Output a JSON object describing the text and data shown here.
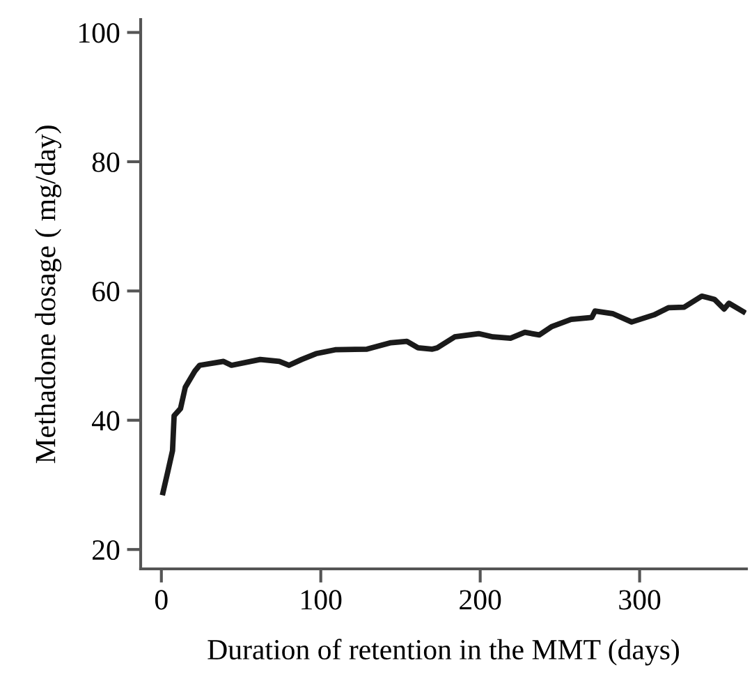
{
  "chart_data": {
    "type": "line",
    "xlabel": "Duration of retention in the MMT (days)",
    "ylabel": "Methadone dosage ( mg/day)",
    "x": [
      1,
      4,
      7,
      8,
      12,
      15,
      21,
      24,
      39,
      44,
      62,
      74,
      80,
      88,
      97,
      109,
      129,
      144,
      154,
      161,
      170,
      173,
      184,
      199,
      208,
      219,
      228,
      237,
      245,
      257,
      270,
      272,
      283,
      295,
      309,
      318,
      328,
      339,
      347,
      353,
      356,
      365
    ],
    "series": [
      {
        "color": "#1a1a1a",
        "values": [
          28.8,
          32.0,
          35.3,
          40.7,
          41.8,
          45.1,
          47.6,
          48.5,
          49.1,
          48.5,
          49.4,
          49.1,
          48.5,
          49.4,
          50.3,
          50.9,
          51.0,
          52.0,
          52.2,
          51.2,
          51.0,
          51.2,
          52.9,
          53.4,
          52.9,
          52.7,
          53.6,
          53.2,
          54.5,
          55.6,
          55.9,
          56.9,
          56.5,
          55.2,
          56.3,
          57.4,
          57.5,
          59.2,
          58.7,
          57.2,
          58.1,
          56.8
        ]
      }
    ],
    "xlim": [
      -13,
      367
    ],
    "ylim": [
      17,
      102
    ],
    "xticks": [
      0,
      100,
      200,
      300
    ],
    "yticks": [
      20,
      40,
      60,
      80,
      100
    ],
    "grid": false,
    "legend": false,
    "line_style": "solid",
    "marker": "none"
  }
}
